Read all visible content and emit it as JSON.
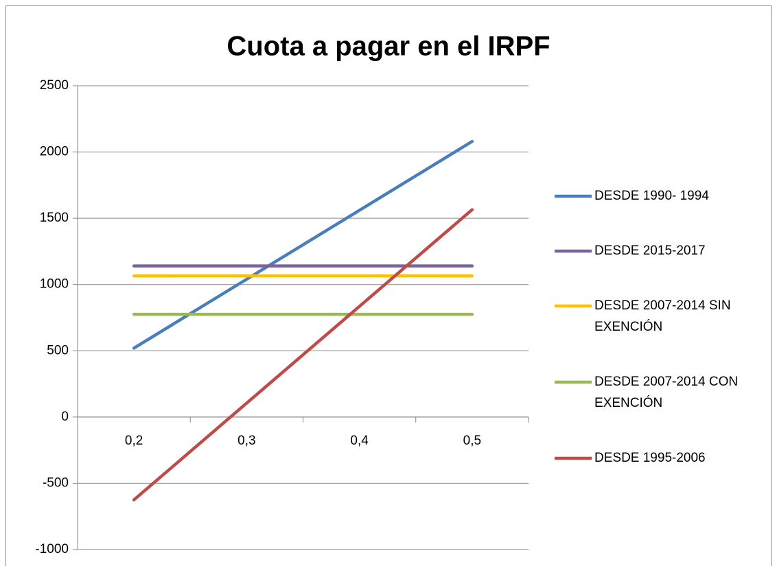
{
  "chart_data": {
    "type": "line",
    "title": "Cuota a pagar en el IRPF",
    "categories": [
      "0,2",
      "0,3",
      "0,4",
      "0,5"
    ],
    "series": [
      {
        "name": "DESDE 1990- 1994",
        "color": "#4a7ebb",
        "values": [
          520,
          1040,
          1560,
          2080
        ]
      },
      {
        "name": "DESDE 2015-2017",
        "color": "#7d60a0",
        "values": [
          1140,
          1140,
          1140,
          1140
        ]
      },
      {
        "name": "DESDE 2007-2014 SIN EXENCIÓN",
        "color": "#ffc000",
        "values": [
          1065,
          1065,
          1065,
          1065
        ]
      },
      {
        "name": "DESDE 2007-2014 CON EXENCIÓN",
        "color": "#98b954",
        "values": [
          775,
          775,
          775,
          775
        ]
      },
      {
        "name": "DESDE 1995-2006",
        "color": "#be4b48",
        "values": [
          -625,
          105,
          835,
          1565
        ]
      }
    ],
    "ylim": [
      -1000,
      2500
    ],
    "yticks": [
      -1000,
      -500,
      0,
      500,
      1000,
      1500,
      2000,
      2500
    ],
    "grid": true,
    "legend": "right"
  }
}
